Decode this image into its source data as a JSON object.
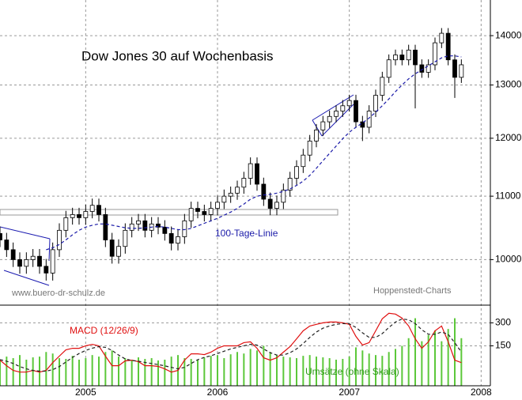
{
  "chart_data": [
    {
      "type": "candlestick",
      "title": "Dow Jones 30 auf Wochenbasis",
      "annotations": [
        "www.buero-dr-schulz.de",
        "Hoppenstedt-Charts"
      ],
      "x": [
        2004.35,
        2004.4,
        2004.45,
        2004.5,
        2004.55,
        2004.6,
        2004.65,
        2004.7,
        2004.75,
        2004.8,
        2004.85,
        2004.9,
        2004.95,
        2005.0,
        2005.05,
        2005.1,
        2005.15,
        2005.2,
        2005.25,
        2005.3,
        2005.35,
        2005.4,
        2005.45,
        2005.5,
        2005.55,
        2005.6,
        2005.65,
        2005.7,
        2005.75,
        2005.8,
        2005.85,
        2005.9,
        2005.95,
        2006.0,
        2006.05,
        2006.1,
        2006.15,
        2006.2,
        2006.25,
        2006.3,
        2006.35,
        2006.4,
        2006.45,
        2006.5,
        2006.55,
        2006.6,
        2006.65,
        2006.7,
        2006.75,
        2006.8,
        2006.85,
        2006.9,
        2006.95,
        2007.0,
        2007.05,
        2007.1,
        2007.15,
        2007.2,
        2007.25,
        2007.3,
        2007.35,
        2007.4,
        2007.45,
        2007.5,
        2007.55,
        2007.6,
        2007.65,
        2007.7,
        2007.75,
        2007.8,
        2007.85
      ],
      "open": [
        10400,
        10300,
        10150,
        10000,
        9900,
        10000,
        10050,
        9900,
        9800,
        10150,
        10450,
        10650,
        10700,
        10650,
        10750,
        10850,
        10700,
        10300,
        10050,
        10200,
        10450,
        10550,
        10600,
        10450,
        10550,
        10500,
        10400,
        10250,
        10350,
        10600,
        10800,
        10750,
        10700,
        10800,
        10900,
        11000,
        11050,
        11150,
        11300,
        11550,
        11200,
        10950,
        10800,
        10900,
        11100,
        11300,
        11500,
        11700,
        11950,
        12150,
        12300,
        12400,
        12500,
        12600,
        12700,
        12300,
        12200,
        12500,
        12800,
        13150,
        13500,
        13600,
        13500,
        13700,
        13400,
        13250,
        13400,
        13850,
        14050,
        13500,
        13150
      ],
      "high": [
        10510,
        10410,
        10260,
        10110,
        10110,
        10160,
        10160,
        10010,
        10260,
        10560,
        10760,
        10810,
        10810,
        10860,
        10960,
        10960,
        10810,
        10410,
        10310,
        10560,
        10660,
        10710,
        10710,
        10660,
        10660,
        10610,
        10510,
        10460,
        10710,
        10910,
        10910,
        10860,
        10910,
        11010,
        11110,
        11160,
        11260,
        11410,
        11660,
        11660,
        11310,
        11060,
        11010,
        11210,
        11410,
        11610,
        11810,
        12060,
        12260,
        12410,
        12510,
        12610,
        12710,
        12810,
        12810,
        12410,
        12610,
        12910,
        13260,
        13610,
        13710,
        13710,
        13810,
        13810,
        13510,
        13510,
        13960,
        14160,
        14160,
        13610,
        13510
      ],
      "low": [
        10190,
        10040,
        9890,
        9790,
        9790,
        9890,
        9790,
        9690,
        9690,
        10040,
        10340,
        10540,
        10540,
        10540,
        10640,
        10590,
        10190,
        9940,
        9940,
        10090,
        10340,
        10440,
        10340,
        10340,
        10390,
        10290,
        10140,
        10140,
        10240,
        10490,
        10640,
        10590,
        10590,
        10690,
        10790,
        10890,
        10940,
        11040,
        11190,
        11090,
        10840,
        10690,
        10690,
        10790,
        10990,
        11190,
        11390,
        11590,
        11840,
        12040,
        12190,
        12290,
        12390,
        12490,
        12190,
        11950,
        12090,
        12390,
        12690,
        13040,
        13390,
        13390,
        13390,
        12550,
        13140,
        13140,
        13290,
        13740,
        13390,
        12750,
        13040
      ],
      "close": [
        10300,
        10150,
        10000,
        9900,
        10000,
        10050,
        9900,
        9800,
        10150,
        10450,
        10650,
        10700,
        10650,
        10750,
        10850,
        10700,
        10300,
        10050,
        10200,
        10450,
        10550,
        10600,
        10450,
        10550,
        10500,
        10400,
        10250,
        10350,
        10600,
        10800,
        10750,
        10700,
        10800,
        10900,
        11000,
        11050,
        11150,
        11300,
        11550,
        11200,
        10950,
        10800,
        10900,
        11100,
        11300,
        11500,
        11700,
        11950,
        12150,
        12300,
        12400,
        12500,
        12600,
        12700,
        12300,
        12200,
        12500,
        12800,
        13150,
        13500,
        13600,
        13500,
        13700,
        13400,
        13250,
        13400,
        13850,
        14050,
        13500,
        13150,
        13400
      ],
      "up_color": "#ffffff",
      "down_color": "#000000",
      "ma": {
        "name": "100-Tage-Linie",
        "color": "#1a1aa8",
        "values": [
          null,
          null,
          null,
          null,
          null,
          null,
          null,
          10150,
          10180,
          10230,
          10300,
          10380,
          10450,
          10500,
          10530,
          10550,
          10550,
          10530,
          10510,
          10490,
          10480,
          10480,
          10490,
          10500,
          10510,
          10500,
          10480,
          10460,
          10460,
          10480,
          10520,
          10560,
          10600,
          10640,
          10690,
          10740,
          10800,
          10870,
          10950,
          11000,
          11020,
          11030,
          11050,
          11080,
          11120,
          11180,
          11250,
          11350,
          11470,
          11600,
          11730,
          11860,
          11990,
          12110,
          12200,
          12280,
          12370,
          12480,
          12600,
          12730,
          12870,
          13000,
          13120,
          13220,
          13300,
          13380,
          13460,
          13540,
          13580,
          13580,
          13560
        ]
      },
      "log": true,
      "ylim": [
        9350,
        14770
      ],
      "yticks": [
        {
          "value": 10000,
          "label": "10000"
        },
        11000,
        12000,
        13000,
        14000
      ],
      "xlim": [
        2004.35,
        2008.07
      ],
      "xticks": [
        2005,
        2006,
        2007,
        2008
      ],
      "grid": true
    },
    {
      "type": "line",
      "series": [
        {
          "name": "Umsätze (ohne Skala)",
          "type": "bar",
          "color": "#5cc83a",
          "values": [
            60,
            80,
            70,
            90,
            60,
            75,
            80,
            110,
            100,
            70,
            65,
            85,
            60,
            70,
            90,
            80,
            110,
            120,
            80,
            70,
            60,
            75,
            65,
            70,
            55,
            60,
            80,
            90,
            70,
            65,
            60,
            75,
            85,
            90,
            70,
            95,
            110,
            100,
            130,
            120,
            150,
            110,
            90,
            80,
            75,
            70,
            85,
            90,
            80,
            75,
            70,
            60,
            65,
            80,
            140,
            120,
            100,
            90,
            85,
            110,
            130,
            150,
            200,
            330,
            180,
            220,
            250,
            180,
            260,
            330,
            200
          ]
        },
        {
          "name": "MACD (12/26/9)",
          "color": "#e01010",
          "values": [
            57,
            21,
            -10,
            -21,
            -21,
            -10,
            -21,
            -10,
            41,
            83,
            124,
            134,
            134,
            150,
            160,
            150,
            83,
            21,
            21,
            52,
            57,
            47,
            21,
            21,
            16,
            0,
            -21,
            -10,
            57,
            98,
            98,
            93,
            109,
            134,
            150,
            150,
            150,
            171,
            176,
            134,
            72,
            57,
            72,
            109,
            145,
            196,
            248,
            279,
            290,
            300,
            305,
            305,
            300,
            290,
            212,
            155,
            171,
            248,
            326,
            362,
            357,
            331,
            279,
            196,
            134,
            176,
            248,
            279,
            176,
            57,
            41
          ]
        },
        {
          "color": "#222222",
          "dash": true,
          "values": [
            60,
            50,
            35,
            15,
            0,
            -10,
            -15,
            -15,
            -5,
            15,
            45,
            75,
            100,
            120,
            135,
            145,
            140,
            120,
            90,
            65,
            55,
            50,
            42,
            35,
            28,
            20,
            10,
            0,
            10,
            35,
            60,
            75,
            85,
            100,
            115,
            130,
            140,
            150,
            160,
            155,
            130,
            105,
            90,
            90,
            105,
            130,
            165,
            205,
            240,
            265,
            280,
            290,
            295,
            293,
            270,
            235,
            205,
            205,
            230,
            270,
            305,
            325,
            320,
            295,
            255,
            225,
            225,
            240,
            225,
            170,
            110
          ]
        }
      ],
      "ylim": [
        -110,
        410
      ],
      "yticks": [
        150,
        300
      ],
      "grid": true
    }
  ]
}
